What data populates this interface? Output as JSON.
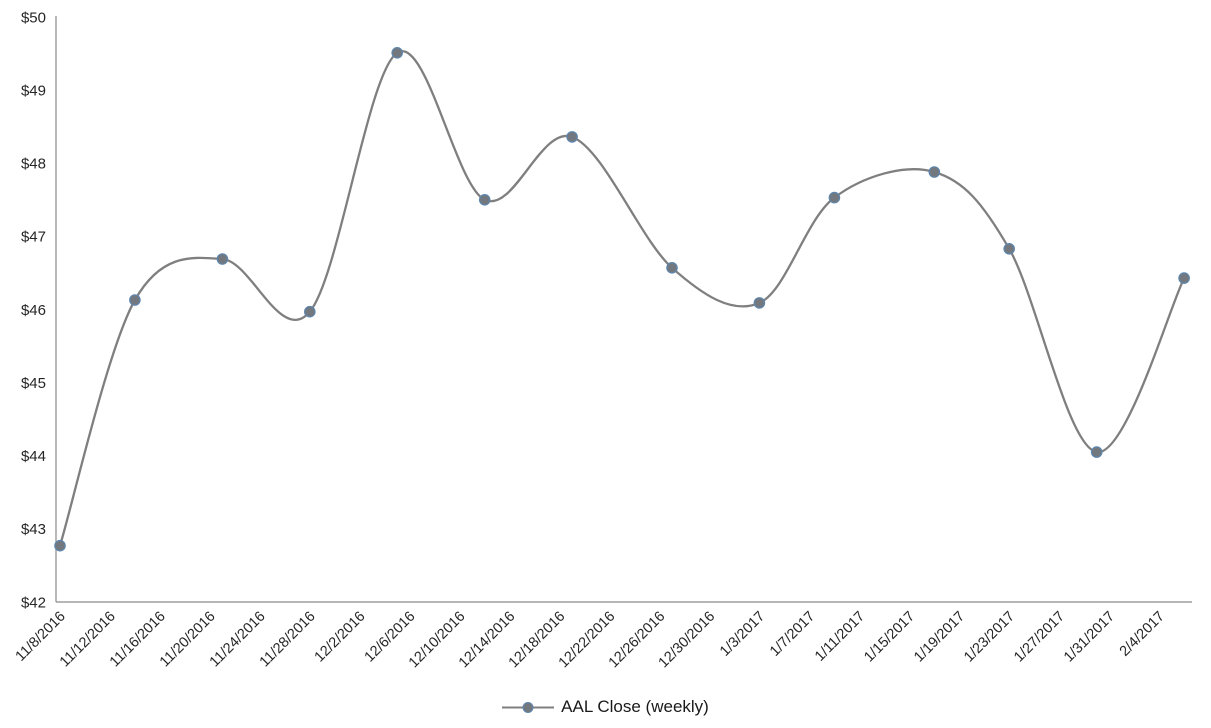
{
  "chart_data": {
    "type": "line",
    "title": "",
    "xlabel": "",
    "ylabel": "",
    "legend": "AAL Close (weekly)",
    "legend_position": "bottom",
    "grid": false,
    "smooth_line": true,
    "markers": true,
    "ylim": [
      42,
      50
    ],
    "y_tick_step": 1,
    "y_tick_labels": [
      "$42",
      "$43",
      "$44",
      "$45",
      "$46",
      "$47",
      "$48",
      "$49",
      "$50"
    ],
    "y_tick_prefix": "$",
    "x_tick_labels": [
      "11/8/2016",
      "11/12/2016",
      "11/16/2016",
      "11/20/2016",
      "11/24/2016",
      "11/28/2016",
      "12/2/2016",
      "12/6/2016",
      "12/10/2016",
      "12/14/2016",
      "12/18/2016",
      "12/22/2016",
      "12/26/2016",
      "12/30/2016",
      "1/3/2017",
      "1/7/2017",
      "1/11/2017",
      "1/15/2017",
      "1/19/2017",
      "1/23/2017",
      "1/27/2017",
      "1/31/2017",
      "2/4/2017"
    ],
    "x_tick_interval_days": 4,
    "series": [
      {
        "name": "AAL Close (weekly)",
        "line_color": "#7f7f7f",
        "marker_fill": "#72787e",
        "marker_stroke": "#5e86ad",
        "points": [
          {
            "date": "11/8/2016",
            "value": 42.77
          },
          {
            "date": "11/14/2016",
            "value": 46.13
          },
          {
            "date": "11/21/2016",
            "value": 46.69
          },
          {
            "date": "11/28/2016",
            "value": 45.97
          },
          {
            "date": "12/5/2016",
            "value": 49.51
          },
          {
            "date": "12/12/2016",
            "value": 47.5
          },
          {
            "date": "12/19/2016",
            "value": 48.36
          },
          {
            "date": "12/27/2016",
            "value": 46.57
          },
          {
            "date": "1/3/2017",
            "value": 46.09
          },
          {
            "date": "1/9/2017",
            "value": 47.53
          },
          {
            "date": "1/17/2017",
            "value": 47.88
          },
          {
            "date": "1/23/2017",
            "value": 46.83
          },
          {
            "date": "1/30/2017",
            "value": 44.05
          },
          {
            "date": "2/6/2017",
            "value": 46.43
          }
        ]
      }
    ]
  },
  "colors": {
    "axis_line": "#8a8a8a",
    "tick_text": "#262626",
    "legend_text": "#1a1a1a",
    "background": "#ffffff"
  }
}
